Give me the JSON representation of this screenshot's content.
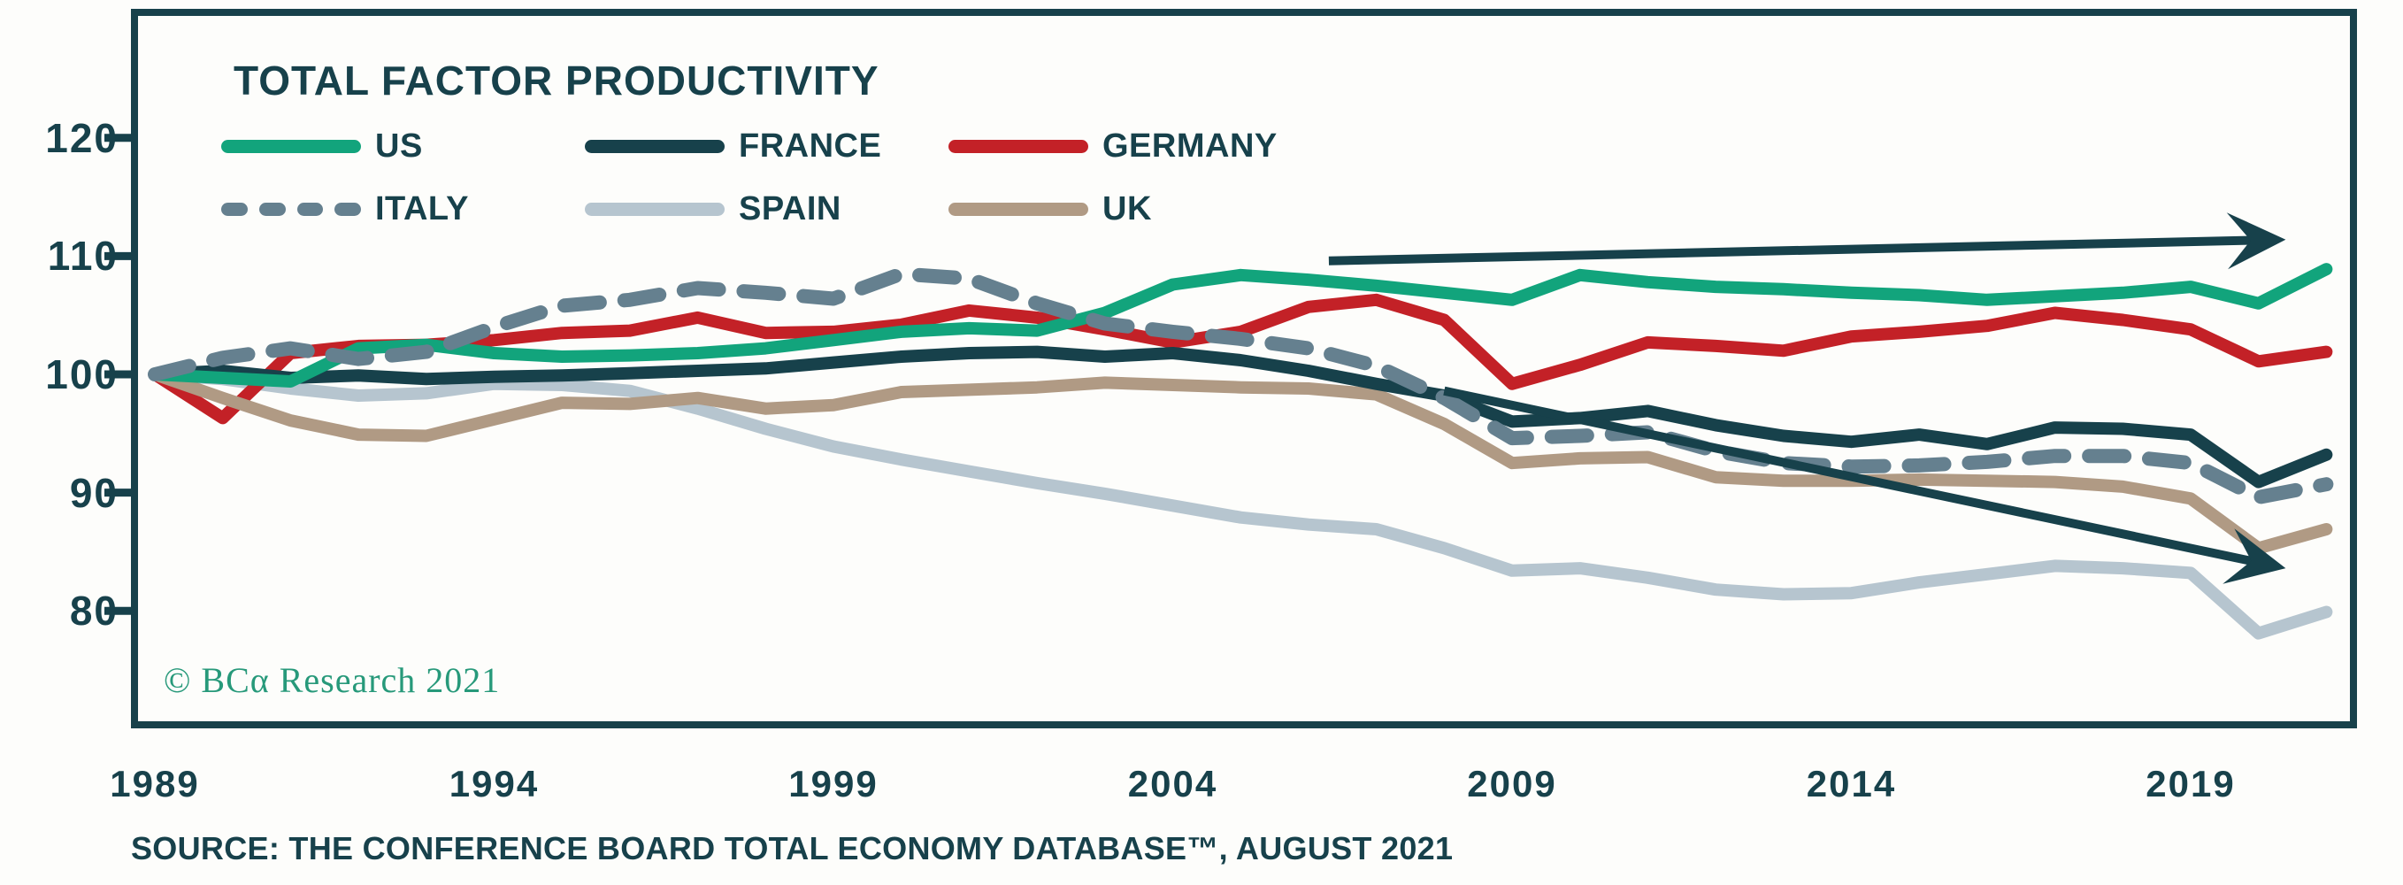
{
  "header": {
    "title": "TOTAL FACTOR PRODUCTIVITY"
  },
  "watermark": "© BCα Research 2021",
  "source_note": "SOURCE: THE CONFERENCE BOARD TOTAL ECONOMY DATABASE™, AUGUST 2021",
  "colors": {
    "ink": "#17414b",
    "background": "#fdfdfb",
    "watermark_green": "#27997a",
    "us": "#12a47c",
    "france": "#17414b",
    "germany": "#c32127",
    "italy": "#65808f",
    "spain": "#b6c5cf",
    "uk": "#b09a84"
  },
  "chart_data": {
    "type": "line",
    "title": "TOTAL FACTOR PRODUCTIVITY",
    "xlabel": "",
    "ylabel": "",
    "x": [
      1989,
      1990,
      1991,
      1992,
      1993,
      1994,
      1995,
      1996,
      1997,
      1998,
      1999,
      2000,
      2001,
      2002,
      2003,
      2004,
      2005,
      2006,
      2007,
      2008,
      2009,
      2010,
      2011,
      2012,
      2013,
      2014,
      2015,
      2016,
      2017,
      2018,
      2019,
      2020,
      2021
    ],
    "xticks": [
      1989,
      1994,
      1999,
      2004,
      2009,
      2014,
      2019
    ],
    "yticks": [
      120,
      110,
      100,
      90,
      80
    ],
    "ylim": [
      70,
      131
    ],
    "grid": false,
    "legend_position": "top-left-two-rows",
    "series": [
      {
        "name": "US",
        "color": "#12a47c",
        "dash": false,
        "values": [
          100,
          99.7,
          99.4,
          102.2,
          102.5,
          101.8,
          101.5,
          101.6,
          101.8,
          102.2,
          102.9,
          103.6,
          103.9,
          103.7,
          105.2,
          107.6,
          108.4,
          108.0,
          107.5,
          106.9,
          106.3,
          108.4,
          107.8,
          107.4,
          107.2,
          106.9,
          106.7,
          106.3,
          106.6,
          106.9,
          107.4,
          106.0,
          108.9
        ]
      },
      {
        "name": "FRANCE",
        "color": "#17414b",
        "dash": false,
        "values": [
          100,
          100.3,
          99.7,
          99.9,
          99.6,
          99.8,
          99.9,
          100.1,
          100.3,
          100.5,
          101.0,
          101.5,
          101.8,
          101.9,
          101.5,
          101.8,
          101.2,
          100.3,
          99.2,
          98.2,
          96.0,
          96.3,
          96.9,
          95.7,
          94.8,
          94.3,
          94.9,
          94.1,
          95.5,
          95.4,
          94.9,
          90.9,
          93.2
        ]
      },
      {
        "name": "GERMANY",
        "color": "#c32127",
        "dash": false,
        "values": [
          100,
          96.3,
          101.8,
          102.4,
          102.5,
          102.9,
          103.5,
          103.7,
          104.8,
          103.5,
          103.6,
          104.2,
          105.4,
          104.8,
          103.8,
          102.7,
          103.6,
          105.7,
          106.3,
          104.6,
          99.2,
          100.8,
          102.7,
          102.4,
          102.0,
          103.2,
          103.6,
          104.1,
          105.2,
          104.6,
          103.8,
          101.1,
          101.9
        ]
      },
      {
        "name": "ITALY",
        "color": "#65808f",
        "dash": true,
        "values": [
          100,
          101.4,
          102.2,
          101.3,
          101.9,
          104.0,
          105.8,
          106.3,
          107.3,
          106.9,
          106.4,
          108.5,
          108.1,
          106.0,
          104.3,
          103.6,
          103.0,
          102.2,
          100.7,
          98.0,
          94.6,
          94.8,
          95.1,
          93.5,
          92.5,
          92.2,
          92.3,
          92.6,
          93.1,
          93.1,
          92.5,
          89.6,
          90.7
        ]
      },
      {
        "name": "SPAIN",
        "color": "#b6c5cf",
        "dash": false,
        "values": [
          100,
          99.6,
          98.8,
          98.2,
          98.4,
          99.2,
          99.1,
          98.6,
          97.1,
          95.4,
          93.9,
          92.8,
          91.8,
          90.8,
          89.9,
          88.9,
          87.9,
          87.3,
          86.9,
          85.3,
          83.4,
          83.6,
          82.8,
          81.8,
          81.4,
          81.5,
          82.4,
          83.1,
          83.8,
          83.6,
          83.2,
          78.1,
          79.9
        ]
      },
      {
        "name": "UK",
        "color": "#b09a84",
        "dash": false,
        "values": [
          100,
          98.0,
          96.1,
          94.9,
          94.8,
          96.2,
          97.6,
          97.5,
          98.0,
          97.1,
          97.4,
          98.5,
          98.7,
          98.9,
          99.3,
          99.1,
          98.9,
          98.8,
          98.3,
          95.8,
          92.5,
          92.9,
          93.0,
          91.3,
          91.0,
          91.0,
          91.1,
          91.0,
          90.9,
          90.5,
          89.5,
          85.3,
          86.9
        ]
      }
    ],
    "annotations": {
      "arrows": [
        {
          "name": "uptrend-arrow",
          "x1": 2006.3,
          "y1": 109.6,
          "x2": 2020.4,
          "y2": 111.4
        },
        {
          "name": "downtrend-arrow",
          "x1": 2008.0,
          "y1": 98.6,
          "x2": 2020.4,
          "y2": 83.6
        }
      ]
    }
  },
  "layout_note": "index lines, 1989 = 100"
}
